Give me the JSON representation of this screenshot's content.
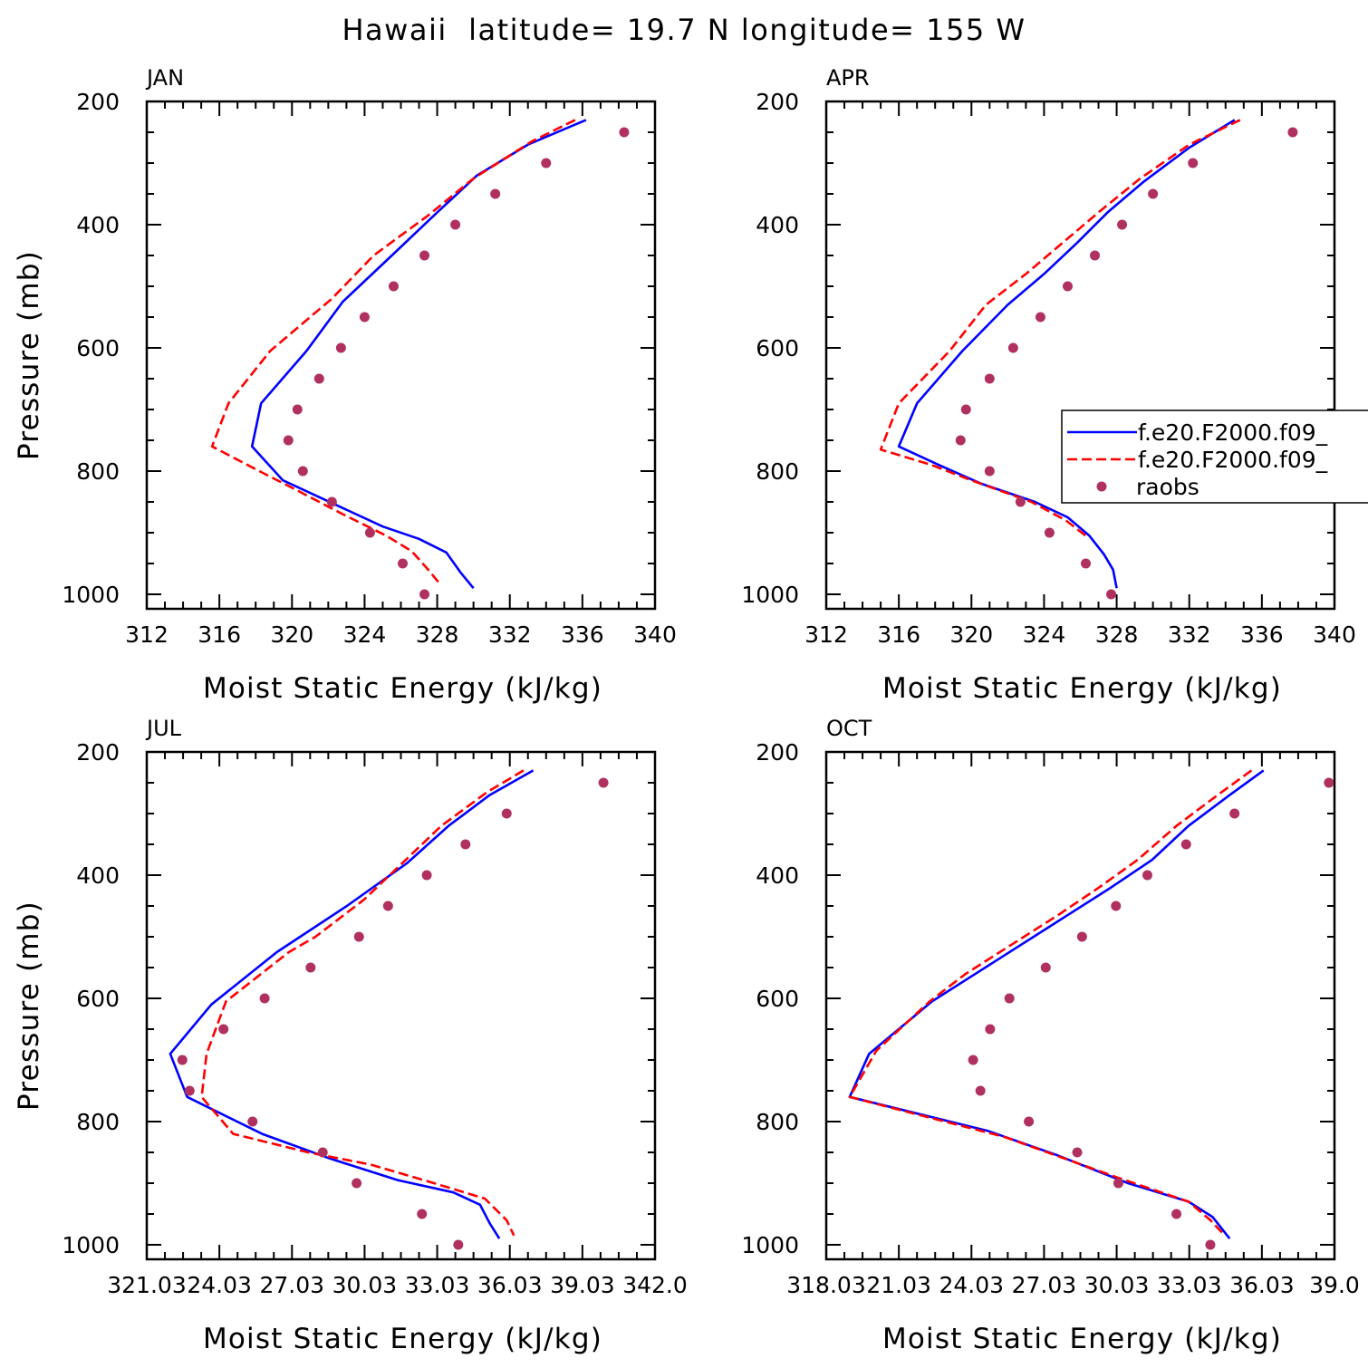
{
  "figure": {
    "title": "Hawaii  latitude= 19.7 N longitude= 155 W"
  },
  "legend": {
    "entries": [
      {
        "label": "f.e20.F2000.f09_",
        "style": "solid",
        "color": "#0000ff"
      },
      {
        "label": "f.e20.F2000.f09_",
        "style": "dashed",
        "color": "#ff0000"
      },
      {
        "label": "raobs",
        "style": "marker",
        "color": "#b03060"
      }
    ]
  },
  "chart_data": [
    {
      "type": "line",
      "panel": "JAN",
      "xlabel": "Moist Static Energy (kJ/kg)",
      "ylabel": "Pressure (mb)",
      "xlim": [
        312,
        340
      ],
      "ylim": [
        1000,
        200
      ],
      "x_ticks": [
        312,
        316,
        320,
        324,
        328,
        332,
        336,
        340
      ],
      "x_tick_labels": [
        "312",
        "316",
        "320",
        "324",
        "328",
        "332",
        "336",
        "340"
      ],
      "y_ticks": [
        200,
        400,
        600,
        800,
        1000
      ],
      "y_tick_labels": [
        "200",
        "400",
        "600",
        "800",
        "1000"
      ],
      "series": [
        {
          "style": "solid",
          "color": "#0000ff",
          "points": [
            [
              336.2,
              230
            ],
            [
              333.0,
              270
            ],
            [
              330.2,
              320
            ],
            [
              328.0,
              380
            ],
            [
              325.5,
              450
            ],
            [
              322.8,
              525
            ],
            [
              320.8,
              605
            ],
            [
              318.3,
              690
            ],
            [
              317.8,
              760
            ],
            [
              319.5,
              815
            ],
            [
              322.8,
              860
            ],
            [
              325.0,
              890
            ],
            [
              327.0,
              910
            ],
            [
              328.5,
              932
            ],
            [
              329.3,
              965
            ],
            [
              330.0,
              990
            ]
          ]
        },
        {
          "style": "dashed",
          "color": "#ff0000",
          "points": [
            [
              335.6,
              230
            ],
            [
              333.2,
              265
            ],
            [
              330.0,
              325
            ],
            [
              327.5,
              385
            ],
            [
              324.5,
              450
            ],
            [
              322.2,
              520
            ],
            [
              318.8,
              605
            ],
            [
              316.5,
              690
            ],
            [
              315.6,
              760
            ],
            [
              318.2,
              800
            ],
            [
              320.2,
              830
            ],
            [
              322.8,
              870
            ],
            [
              325.2,
              905
            ],
            [
              326.6,
              930
            ],
            [
              327.5,
              960
            ],
            [
              328.2,
              985
            ]
          ]
        },
        {
          "style": "marker",
          "color": "#b03060",
          "points": [
            [
              338.3,
              250
            ],
            [
              334.0,
              300
            ],
            [
              331.2,
              350
            ],
            [
              329.0,
              400
            ],
            [
              327.3,
              450
            ],
            [
              325.6,
              500
            ],
            [
              324.0,
              550
            ],
            [
              322.7,
              600
            ],
            [
              321.5,
              650
            ],
            [
              320.3,
              700
            ],
            [
              319.8,
              750
            ],
            [
              320.6,
              800
            ],
            [
              322.2,
              850
            ],
            [
              324.3,
              900
            ],
            [
              326.1,
              950
            ],
            [
              327.3,
              1000
            ]
          ]
        }
      ]
    },
    {
      "type": "line",
      "panel": "APR",
      "xlabel": "Moist Static Energy (kJ/kg)",
      "ylabel": "",
      "xlim": [
        312,
        340
      ],
      "ylim": [
        1000,
        200
      ],
      "x_ticks": [
        312,
        316,
        320,
        324,
        328,
        332,
        336,
        340
      ],
      "x_tick_labels": [
        "312",
        "316",
        "320",
        "324",
        "328",
        "332",
        "336",
        "340"
      ],
      "y_ticks": [
        200,
        400,
        600,
        800,
        1000
      ],
      "y_tick_labels": [
        "200",
        "400",
        "600",
        "800",
        "1000"
      ],
      "series": [
        {
          "style": "solid",
          "color": "#0000ff",
          "points": [
            [
              334.5,
              230
            ],
            [
              332.0,
              275
            ],
            [
              329.5,
              330
            ],
            [
              327.5,
              380
            ],
            [
              325.8,
              430
            ],
            [
              324.0,
              480
            ],
            [
              322.0,
              530
            ],
            [
              319.5,
              605
            ],
            [
              317.0,
              690
            ],
            [
              316.0,
              760
            ],
            [
              318.2,
              790
            ],
            [
              320.5,
              820
            ],
            [
              323.5,
              850
            ],
            [
              325.3,
              875
            ],
            [
              326.5,
              905
            ],
            [
              327.3,
              935
            ],
            [
              327.8,
              960
            ],
            [
              328.0,
              990
            ]
          ]
        },
        {
          "style": "dashed",
          "color": "#ff0000",
          "points": [
            [
              334.8,
              230
            ],
            [
              332.0,
              270
            ],
            [
              329.3,
              325
            ],
            [
              327.0,
              380
            ],
            [
              325.0,
              430
            ],
            [
              323.0,
              480
            ],
            [
              320.8,
              530
            ],
            [
              318.8,
              605
            ],
            [
              316.0,
              690
            ],
            [
              315.0,
              765
            ],
            [
              317.8,
              790
            ],
            [
              320.0,
              815
            ],
            [
              323.3,
              850
            ],
            [
              325.2,
              880
            ],
            [
              326.3,
              905
            ]
          ]
        },
        {
          "style": "marker",
          "color": "#b03060",
          "points": [
            [
              337.7,
              250
            ],
            [
              332.2,
              300
            ],
            [
              330.0,
              350
            ],
            [
              328.3,
              400
            ],
            [
              326.8,
              450
            ],
            [
              325.3,
              500
            ],
            [
              323.8,
              550
            ],
            [
              322.3,
              600
            ],
            [
              321.0,
              650
            ],
            [
              319.7,
              700
            ],
            [
              319.4,
              750
            ],
            [
              321.0,
              800
            ],
            [
              322.7,
              850
            ],
            [
              324.3,
              900
            ],
            [
              326.3,
              950
            ],
            [
              327.7,
              1000
            ]
          ]
        }
      ]
    },
    {
      "type": "line",
      "panel": "JUL",
      "xlabel": "Moist Static Energy (kJ/kg)",
      "ylabel": "Pressure (mb)",
      "xlim": [
        321.03,
        342.03
      ],
      "ylim": [
        1000,
        200
      ],
      "x_ticks": [
        321.03,
        324.03,
        327.03,
        330.03,
        333.03,
        336.03,
        339.03,
        342.03
      ],
      "x_tick_labels": [
        "321.03",
        "24.03",
        "27.03",
        "30.03",
        "33.03",
        "36.03",
        "39.03",
        "342.0"
      ],
      "y_ticks": [
        200,
        400,
        600,
        800,
        1000
      ],
      "y_tick_labels": [
        "200",
        "400",
        "600",
        "800",
        "1000"
      ],
      "series": [
        {
          "style": "solid",
          "color": "#0000ff",
          "points": [
            [
              337.0,
              230
            ],
            [
              335.2,
              270
            ],
            [
              333.5,
              320
            ],
            [
              331.8,
              380
            ],
            [
              329.3,
              450
            ],
            [
              326.4,
              525
            ],
            [
              323.7,
              610
            ],
            [
              322.0,
              690
            ],
            [
              322.7,
              760
            ],
            [
              325.8,
              820
            ],
            [
              328.6,
              860
            ],
            [
              331.4,
              895
            ],
            [
              333.7,
              915
            ],
            [
              334.8,
              935
            ],
            [
              335.2,
              965
            ],
            [
              335.6,
              990
            ]
          ]
        },
        {
          "style": "dashed",
          "color": "#ff0000",
          "points": [
            [
              336.6,
              230
            ],
            [
              335.1,
              265
            ],
            [
              333.2,
              320
            ],
            [
              331.6,
              380
            ],
            [
              330.0,
              440
            ],
            [
              328.0,
              500
            ],
            [
              326.9,
              525
            ],
            [
              324.3,
              605
            ],
            [
              323.5,
              690
            ],
            [
              323.3,
              760
            ],
            [
              324.6,
              820
            ],
            [
              327.7,
              850
            ],
            [
              330.3,
              870
            ],
            [
              332.9,
              900
            ],
            [
              335.0,
              925
            ],
            [
              335.9,
              960
            ],
            [
              336.2,
              985
            ]
          ]
        },
        {
          "style": "marker",
          "color": "#b03060",
          "points": [
            [
              339.9,
              250
            ],
            [
              335.9,
              300
            ],
            [
              334.2,
              350
            ],
            [
              332.6,
              400
            ],
            [
              331.0,
              450
            ],
            [
              329.8,
              500
            ],
            [
              327.8,
              550
            ],
            [
              325.9,
              600
            ],
            [
              324.2,
              650
            ],
            [
              322.5,
              700
            ],
            [
              322.8,
              750
            ],
            [
              325.4,
              800
            ],
            [
              328.3,
              850
            ],
            [
              329.7,
              900
            ],
            [
              332.4,
              950
            ],
            [
              333.9,
              1000
            ]
          ]
        }
      ]
    },
    {
      "type": "line",
      "panel": "OCT",
      "xlabel": "Moist Static Energy (kJ/kg)",
      "ylabel": "",
      "xlim": [
        318.03,
        339.03
      ],
      "ylim": [
        1000,
        200
      ],
      "x_ticks": [
        318.03,
        321.03,
        324.03,
        327.03,
        330.03,
        333.03,
        336.03,
        339.03
      ],
      "x_tick_labels": [
        "318.03",
        "21.03",
        "24.03",
        "27.03",
        "30.03",
        "33.03",
        "36.03",
        "39.0"
      ],
      "y_ticks": [
        200,
        400,
        600,
        800,
        1000
      ],
      "y_tick_labels": [
        "200",
        "400",
        "600",
        "800",
        "1000"
      ],
      "series": [
        {
          "style": "solid",
          "color": "#0000ff",
          "points": [
            [
              336.1,
              230
            ],
            [
              334.7,
              270
            ],
            [
              333.0,
              320
            ],
            [
              331.5,
              375
            ],
            [
              329.8,
              420
            ],
            [
              328.0,
              465
            ],
            [
              326.0,
              515
            ],
            [
              324.2,
              560
            ],
            [
              322.4,
              605
            ],
            [
              319.8,
              690
            ],
            [
              319.0,
              760
            ],
            [
              324.7,
              815
            ],
            [
              327.6,
              855
            ],
            [
              330.5,
              900
            ],
            [
              333.0,
              930
            ],
            [
              334.0,
              955
            ],
            [
              334.7,
              990
            ]
          ]
        },
        {
          "style": "dashed",
          "color": "#ff0000",
          "points": [
            [
              335.6,
              230
            ],
            [
              334.2,
              270
            ],
            [
              332.5,
              320
            ],
            [
              330.9,
              375
            ],
            [
              329.3,
              420
            ],
            [
              327.6,
              465
            ],
            [
              325.6,
              515
            ],
            [
              323.8,
              560
            ],
            [
              322.3,
              605
            ],
            [
              320.1,
              685
            ],
            [
              319.0,
              760
            ],
            [
              325.4,
              825
            ],
            [
              330.0,
              890
            ],
            [
              333.0,
              930
            ],
            [
              333.9,
              960
            ],
            [
              334.5,
              985
            ]
          ]
        },
        {
          "style": "marker",
          "color": "#b03060",
          "points": [
            [
              338.8,
              250
            ],
            [
              334.9,
              300
            ],
            [
              332.9,
              350
            ],
            [
              331.3,
              400
            ],
            [
              330.0,
              450
            ],
            [
              328.6,
              500
            ],
            [
              327.1,
              550
            ],
            [
              325.6,
              600
            ],
            [
              324.8,
              650
            ],
            [
              324.1,
              700
            ],
            [
              324.4,
              750
            ],
            [
              326.4,
              800
            ],
            [
              328.4,
              850
            ],
            [
              330.1,
              900
            ],
            [
              332.5,
              950
            ],
            [
              333.9,
              1000
            ]
          ]
        }
      ]
    }
  ]
}
